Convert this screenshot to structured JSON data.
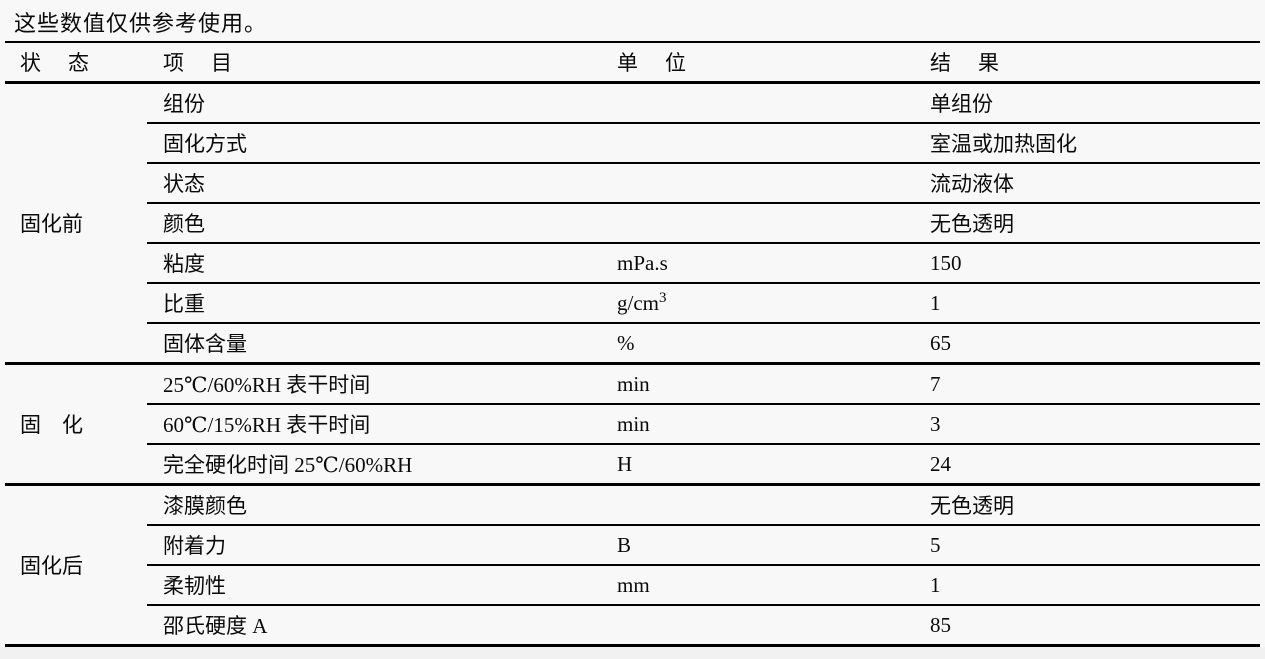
{
  "note": "这些数值仅供参考使用。",
  "colors": {
    "background": "#f8f8f8",
    "rule_line": "#000000",
    "text": "#0a0a0a"
  },
  "table": {
    "headers": {
      "state": "状　态",
      "item": "项　目",
      "unit": "单　位",
      "result": "结　果"
    },
    "groups": [
      {
        "state": "固化前",
        "rows": [
          {
            "item": "组份",
            "unit": "",
            "result": "单组份"
          },
          {
            "item": "固化方式",
            "unit": "",
            "result": "室温或加热固化"
          },
          {
            "item": "状态",
            "unit": "",
            "result": "流动液体"
          },
          {
            "item": "颜色",
            "unit": "",
            "result": "无色透明"
          },
          {
            "item": "粘度",
            "unit": "mPa.s",
            "result": "150"
          },
          {
            "item": "比重",
            "unit": "g/cm",
            "unit_sup": "3",
            "result": "1"
          },
          {
            "item": "固体含量",
            "unit": "%",
            "result": "65"
          }
        ]
      },
      {
        "state": "固　化",
        "rows": [
          {
            "item": "25℃/60%RH 表干时间",
            "unit": "min",
            "result": "7"
          },
          {
            "item": "60℃/15%RH 表干时间",
            "unit": "min",
            "result": "3"
          },
          {
            "item": "完全硬化时间 25℃/60%RH",
            "unit": "H",
            "result": "24"
          }
        ]
      },
      {
        "state": "固化后",
        "rows": [
          {
            "item": "漆膜颜色",
            "unit": "",
            "result": "无色透明"
          },
          {
            "item": "附着力",
            "unit": "B",
            "result": "5"
          },
          {
            "item": "柔韧性",
            "unit": "mm",
            "result": "1"
          },
          {
            "item": "邵氏硬度 A",
            "unit": "",
            "result": "85"
          }
        ]
      }
    ]
  }
}
